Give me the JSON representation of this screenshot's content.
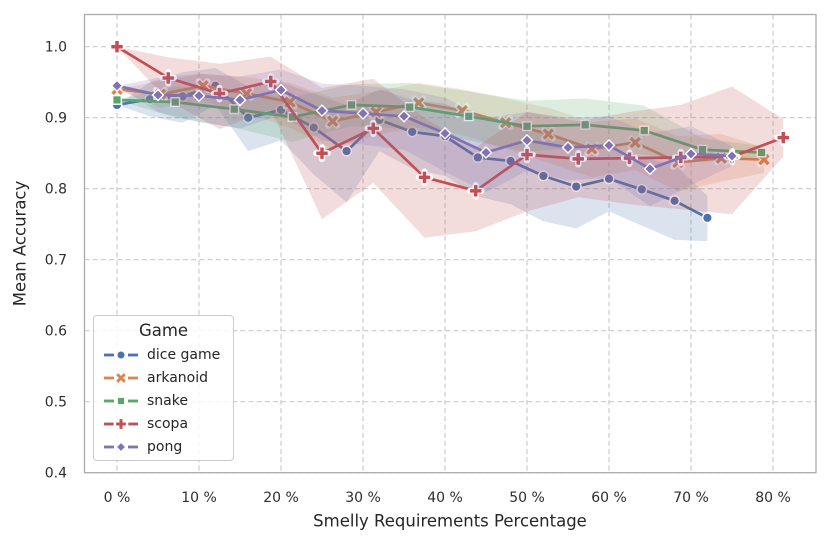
{
  "legend": {
    "title": "Game",
    "entries": [
      "dice game",
      "arkanoid",
      "snake",
      "scopa",
      "pong"
    ]
  },
  "axes": {
    "x_ticks": [
      {
        "value": 0,
        "label": "0 %"
      },
      {
        "value": 10,
        "label": "10 %"
      },
      {
        "value": 20,
        "label": "20 %"
      },
      {
        "value": 30,
        "label": "30 %"
      },
      {
        "value": 40,
        "label": "40 %"
      },
      {
        "value": 50,
        "label": "50 %"
      },
      {
        "value": 60,
        "label": "60 %"
      },
      {
        "value": 70,
        "label": "70 %"
      },
      {
        "value": 80,
        "label": "80 %"
      }
    ],
    "y_ticks": [
      {
        "value": 0.4,
        "label": "0.4"
      },
      {
        "value": 0.5,
        "label": "0.5"
      },
      {
        "value": 0.6,
        "label": "0.6"
      },
      {
        "value": 0.7,
        "label": "0.7"
      },
      {
        "value": 0.8,
        "label": "0.8"
      },
      {
        "value": 0.9,
        "label": "0.9"
      },
      {
        "value": 1.0,
        "label": "1.0"
      }
    ],
    "grid_color": "#cccccc",
    "spine_color": "#ababab",
    "tick_label_color": "#2e2e2e",
    "label_color": "#262626"
  },
  "chart_data": {
    "type": "line",
    "title": "",
    "xlabel": "Smelly Requirements Percentage",
    "ylabel": "Mean Accuracy",
    "xlim": [
      -4.1,
      85.3
    ],
    "ylim": [
      0.4,
      1.047
    ],
    "grid": true,
    "grid_style": "dashed",
    "legend_position": "lower left",
    "legend_title": "Game",
    "band_alpha": 0.2,
    "series": [
      {
        "name": "dice game",
        "color": "#4c72b0",
        "marker": "circle",
        "x": [
          0,
          4,
          8,
          12,
          16,
          20,
          24,
          28,
          32,
          36,
          40,
          44,
          48,
          52,
          56,
          60,
          64,
          68,
          72
        ],
        "y": [
          0.918,
          0.926,
          0.93,
          0.945,
          0.9,
          0.911,
          0.886,
          0.853,
          0.897,
          0.88,
          0.874,
          0.844,
          0.839,
          0.818,
          0.803,
          0.814,
          0.799,
          0.783,
          0.759
        ],
        "ci_lower": [
          0.918,
          0.902,
          0.893,
          0.918,
          0.853,
          0.868,
          0.82,
          0.781,
          0.853,
          0.828,
          0.818,
          0.789,
          0.778,
          0.754,
          0.744,
          0.768,
          0.748,
          0.728,
          0.726
        ],
        "ci_upper": [
          0.918,
          0.95,
          0.964,
          0.97,
          0.944,
          0.95,
          0.934,
          0.918,
          0.94,
          0.925,
          0.92,
          0.9,
          0.894,
          0.88,
          0.864,
          0.858,
          0.844,
          0.834,
          0.79
        ]
      },
      {
        "name": "arkanoid",
        "color": "#dd8452",
        "marker": "x",
        "x": [
          0,
          5.3,
          10.5,
          15.8,
          21.1,
          26.3,
          31.6,
          36.8,
          42.1,
          47.4,
          52.6,
          57.9,
          63.2,
          68.4,
          73.7,
          78.9
        ],
        "y": [
          0.94,
          0.933,
          0.945,
          0.934,
          0.922,
          0.895,
          0.908,
          0.921,
          0.91,
          0.893,
          0.877,
          0.856,
          0.865,
          0.837,
          0.843,
          0.841
        ],
        "ci_lower": [
          0.94,
          0.914,
          0.924,
          0.906,
          0.886,
          0.856,
          0.876,
          0.886,
          0.876,
          0.856,
          0.836,
          0.816,
          0.826,
          0.796,
          0.81,
          0.822
        ],
        "ci_upper": [
          0.94,
          0.952,
          0.962,
          0.957,
          0.949,
          0.928,
          0.937,
          0.949,
          0.94,
          0.927,
          0.914,
          0.894,
          0.899,
          0.874,
          0.877,
          0.858
        ]
      },
      {
        "name": "snake",
        "color": "#55a868",
        "marker": "square",
        "x": [
          0,
          7.1,
          14.3,
          21.4,
          28.6,
          35.7,
          42.9,
          50,
          57.1,
          64.3,
          71.4,
          78.6
        ],
        "y": [
          0.925,
          0.922,
          0.912,
          0.901,
          0.918,
          0.915,
          0.902,
          0.888,
          0.89,
          0.882,
          0.855,
          0.851
        ],
        "ci_lower": [
          0.925,
          0.9,
          0.886,
          0.866,
          0.888,
          0.884,
          0.868,
          0.852,
          0.858,
          0.848,
          0.838,
          0.842
        ],
        "ci_upper": [
          0.925,
          0.944,
          0.937,
          0.929,
          0.947,
          0.949,
          0.937,
          0.924,
          0.927,
          0.917,
          0.871,
          0.86
        ]
      },
      {
        "name": "scopa",
        "color": "#c44e52",
        "marker": "plus",
        "x": [
          0,
          6.25,
          12.5,
          18.75,
          25,
          31.25,
          37.5,
          43.75,
          50,
          56.25,
          62.5,
          68.75,
          75,
          81.25
        ],
        "y": [
          1.0,
          0.956,
          0.934,
          0.951,
          0.85,
          0.885,
          0.816,
          0.797,
          0.848,
          0.842,
          0.843,
          0.844,
          0.845,
          0.872
        ],
        "ci_lower": [
          1.0,
          0.924,
          0.884,
          0.912,
          0.757,
          0.808,
          0.731,
          0.74,
          0.768,
          0.788,
          0.778,
          0.771,
          0.764,
          0.845
        ],
        "ci_upper": [
          1.0,
          0.985,
          0.976,
          0.986,
          0.942,
          0.955,
          0.9,
          0.858,
          0.908,
          0.895,
          0.908,
          0.918,
          0.944,
          0.898
        ]
      },
      {
        "name": "pong",
        "color": "#8172b3",
        "marker": "diamond",
        "x": [
          0,
          5,
          10,
          15,
          20,
          25,
          30,
          35,
          40,
          45,
          50,
          55,
          60,
          65,
          70,
          75
        ],
        "y": [
          0.945,
          0.932,
          0.931,
          0.925,
          0.939,
          0.91,
          0.906,
          0.902,
          0.878,
          0.851,
          0.868,
          0.858,
          0.861,
          0.828,
          0.849,
          0.846
        ],
        "ci_lower": [
          0.945,
          0.908,
          0.894,
          0.885,
          0.904,
          0.868,
          0.862,
          0.855,
          0.824,
          0.795,
          0.825,
          0.812,
          0.815,
          0.775,
          0.805,
          0.832
        ],
        "ci_upper": [
          0.945,
          0.956,
          0.962,
          0.958,
          0.968,
          0.948,
          0.945,
          0.94,
          0.928,
          0.9,
          0.908,
          0.9,
          0.902,
          0.878,
          0.888,
          0.86
        ]
      }
    ]
  }
}
